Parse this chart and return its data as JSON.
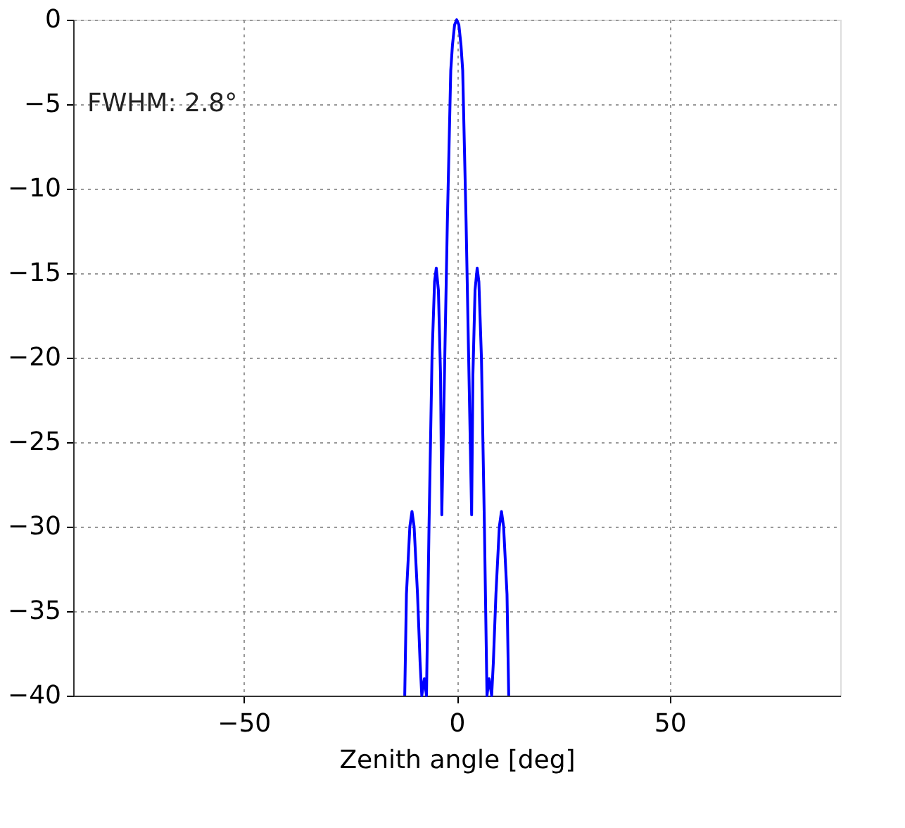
{
  "chart_data": {
    "type": "line",
    "xlabel": "Zenith angle [deg]",
    "annotations": [
      "FWHM: 2.8°"
    ],
    "x": [
      -12.2,
      -11.8,
      -11.0,
      -10.5,
      -10.0,
      -9.2,
      -8.6,
      -8.2,
      -7.6,
      -7.1,
      -6.5,
      -5.8,
      -5.2,
      -4.8,
      -4.3,
      -3.8,
      -3.5,
      -2.8,
      -2.2,
      -1.4,
      -1.0,
      -0.5,
      0,
      0.5,
      1.0,
      1.4,
      2.2,
      2.8,
      3.5,
      3.8,
      4.3,
      4.8,
      5.2,
      5.8,
      6.5,
      7.1,
      7.6,
      8.2,
      8.6,
      9.2,
      10.0,
      10.5,
      11.0,
      11.8,
      12.2
    ],
    "series": [
      {
        "color": "#0000ff",
        "values": [
          -40,
          -34,
          -30,
          -29.1,
          -30,
          -34,
          -38,
          -40,
          -39,
          -40,
          -30,
          -20,
          -15.5,
          -14.7,
          -16,
          -21,
          -29.3,
          -20,
          -12,
          -3,
          -1.5,
          -0.3,
          0,
          -0.3,
          -1.5,
          -3,
          -12,
          -20,
          -29.3,
          -21,
          -16,
          -14.7,
          -15.5,
          -20,
          -30,
          -40,
          -39,
          -40,
          -38,
          -34,
          -30,
          -29.1,
          -30,
          -34,
          -40
        ]
      }
    ],
    "xlim": [
      -90,
      90
    ],
    "ylim": [
      -40,
      0
    ],
    "xticks": [
      -50,
      0,
      50
    ],
    "yticks": [
      0,
      -5,
      -10,
      -15,
      -20,
      -25,
      -30,
      -35,
      -40
    ],
    "grid": true,
    "marker": "none",
    "line_style": "solid"
  }
}
